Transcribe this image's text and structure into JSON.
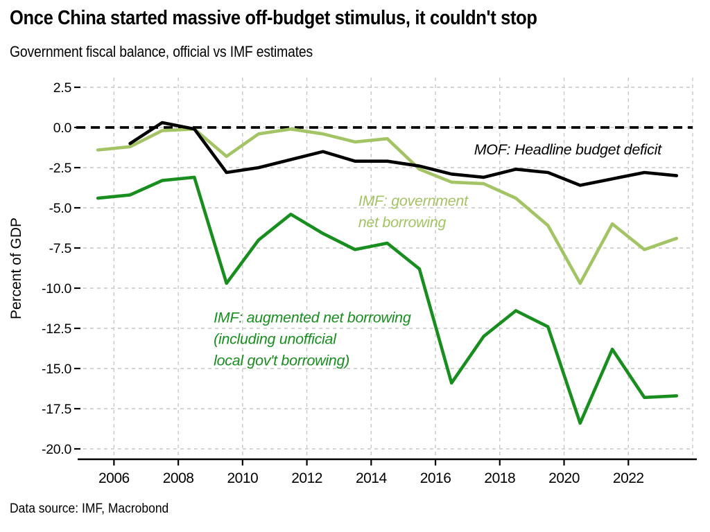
{
  "header": {
    "title": "Once China started massive off-budget stimulus, it couldn't stop",
    "subtitle": "Government fiscal balance, official vs IMF estimates"
  },
  "footer": {
    "source": "Data source: IMF, Macrobond"
  },
  "chart_data": {
    "type": "line",
    "title": "Once China started massive off-budget stimulus, it couldn't stop",
    "subtitle": "Government fiscal balance, official vs IMF estimates",
    "ylabel": "Percent of GDP",
    "xlabel": "",
    "source": "Data source: IMF, Macrobond",
    "x_range": [
      2005,
      2024
    ],
    "y_range": [
      -20.7,
      3.2
    ],
    "grid": true,
    "grid_years": [
      2006,
      2008,
      2010,
      2012,
      2014,
      2016,
      2018,
      2020,
      2022,
      2024
    ],
    "x_tick_years": [
      2006,
      2008,
      2010,
      2012,
      2014,
      2016,
      2018,
      2020,
      2022
    ],
    "x_tick_labels": [
      "2006",
      "2008",
      "2010",
      "2012",
      "2014",
      "2016",
      "2018",
      "2020",
      "2022"
    ],
    "y_ticks": [
      2.5,
      0.0,
      -2.5,
      -5.0,
      -7.5,
      -10.0,
      -12.5,
      -15.0,
      -17.5,
      -20.0
    ],
    "y_tick_labels": [
      "2.5",
      "0.0",
      "-2.5",
      "-5.0",
      "-7.5",
      "-10.0",
      "-12.5",
      "-15.0",
      "-17.5",
      "-20.0"
    ],
    "zero_line": {
      "value": 0,
      "color": "#000000",
      "style": "dashed"
    },
    "colors": {
      "mof": "#000000",
      "imf_net": "#a3c464",
      "imf_augmented": "#178e1e",
      "grid": "#c7c7c7"
    },
    "note": "annual data plotted at mid-year (year + 0.5)",
    "series": [
      {
        "name": "IMF: government net borrowing",
        "color_key": "imf_net",
        "start_year": 2005,
        "values": [
          -1.4,
          -1.2,
          -0.2,
          -0.1,
          -1.8,
          -0.4,
          -0.1,
          -0.4,
          -0.9,
          -0.7,
          -2.6,
          -3.4,
          -3.5,
          -4.4,
          -6.1,
          -9.7,
          -6.0,
          -7.6,
          -6.9
        ]
      },
      {
        "name": "IMF: augmented net borrowing (including unofficial local gov't borrowing)",
        "color_key": "imf_augmented",
        "start_year": 2005,
        "values": [
          -4.4,
          -4.2,
          -3.3,
          -3.1,
          -9.7,
          -7.0,
          -5.4,
          -6.6,
          -7.6,
          -7.2,
          -8.8,
          -15.9,
          -13.0,
          -11.4,
          -12.4,
          -18.4,
          -13.8,
          -16.8,
          -16.7
        ]
      },
      {
        "name": "MOF: Headline budget deficit",
        "color_key": "mof",
        "start_year": 2006,
        "values": [
          -1.0,
          0.3,
          -0.1,
          -2.8,
          -2.5,
          -2.0,
          -1.5,
          -2.1,
          -2.1,
          -2.4,
          -2.9,
          -3.1,
          -2.6,
          -2.8,
          -3.6,
          -3.2,
          -2.8,
          -3.0
        ]
      }
    ],
    "annotations": [
      {
        "lines": [
          "MOF: Headline budget deficit"
        ],
        "color_key": "mof",
        "x_year": 2017.2,
        "y_value": -1.35
      },
      {
        "lines": [
          "IMF: government",
          "net borrowing"
        ],
        "color_key": "imf_net",
        "x_year": 2013.6,
        "y_value": -4.55
      },
      {
        "lines": [
          "IMF: augmented net borrowing",
          "(including unofficial",
          "local gov't borrowing)"
        ],
        "color_key": "imf_augmented",
        "x_year": 2009.1,
        "y_value": -11.8
      }
    ]
  }
}
